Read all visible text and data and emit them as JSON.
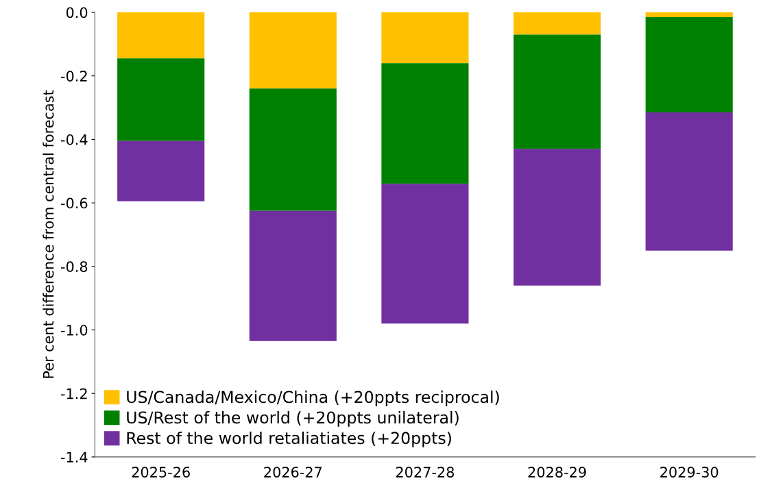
{
  "chart_data": {
    "type": "bar",
    "stacked": true,
    "ylabel": "Per cent difference from central forecast",
    "categories": [
      "2025-26",
      "2026-27",
      "2027-28",
      "2028-29",
      "2029-30"
    ],
    "series": [
      {
        "name": "US/Canada/Mexico/China (+20ppts reciprocal)",
        "color": "#ffc000",
        "values": [
          -0.145,
          -0.24,
          -0.16,
          -0.07,
          -0.015
        ]
      },
      {
        "name": "US/Rest of the world (+20ppts unilateral)",
        "color": "#008000",
        "values": [
          -0.26,
          -0.385,
          -0.38,
          -0.36,
          -0.3
        ]
      },
      {
        "name": "Rest of the world retaliatiates (+20ppts)",
        "color": "#7030a0",
        "values": [
          -0.19,
          -0.41,
          -0.44,
          -0.43,
          -0.435
        ]
      }
    ],
    "ylim": [
      -1.4,
      0
    ],
    "yticks": [
      {
        "value": 0,
        "label": "0.0"
      },
      {
        "value": -0.2,
        "label": "-0.2"
      },
      {
        "value": -0.4,
        "label": "-0.4"
      },
      {
        "value": -0.6,
        "label": "-0.6"
      },
      {
        "value": -0.8,
        "label": "-0.8"
      },
      {
        "value": -1.0,
        "label": "-1.0"
      },
      {
        "value": -1.2,
        "label": "-1.2"
      },
      {
        "value": -1.4,
        "label": "-1.4"
      }
    ],
    "grid": false,
    "legend": "bottom left"
  }
}
